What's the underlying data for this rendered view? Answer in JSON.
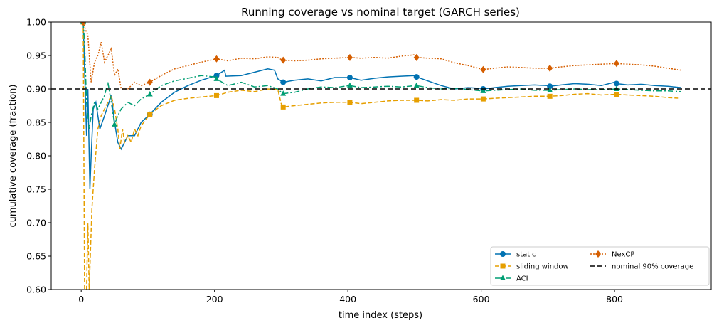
{
  "chart_data": {
    "type": "line",
    "title": "Running coverage vs nominal target (GARCH series)",
    "xlabel": "time index (steps)",
    "ylabel": "cumulative coverage (fraction)",
    "xlim": [
      -45,
      945
    ],
    "ylim": [
      0.6,
      1.0
    ],
    "xticks": [
      0,
      200,
      400,
      600,
      800
    ],
    "yticks": [
      0.6,
      0.65,
      0.7,
      0.75,
      0.8,
      0.85,
      0.9,
      0.95,
      1.0
    ],
    "xtick_labels": [
      "0",
      "200",
      "400",
      "600",
      "800"
    ],
    "ytick_labels": [
      "0.60",
      "0.65",
      "0.70",
      "0.75",
      "0.80",
      "0.85",
      "0.90",
      "0.95",
      "1.00"
    ],
    "grid": false,
    "legend_position": "lower-right",
    "reference_line": {
      "y": 0.9,
      "name": "nominal 90% coverage",
      "color": "#000000"
    },
    "series": [
      {
        "name": "static",
        "color": "#0072b2",
        "dash": "solid",
        "marker": "circle",
        "marker_x": [
          3,
          103,
          203,
          303,
          403,
          503,
          603,
          703,
          803
        ],
        "marker_y": [
          1.0,
          0.862,
          0.92,
          0.91,
          0.917,
          0.918,
          0.9,
          0.904,
          0.908
        ],
        "x": [
          3,
          8,
          10,
          13,
          15,
          18,
          22,
          28,
          35,
          45,
          50,
          55,
          60,
          70,
          80,
          90,
          103,
          120,
          140,
          160,
          180,
          203,
          215,
          217,
          240,
          260,
          280,
          290,
          295,
          300,
          303,
          320,
          340,
          360,
          380,
          403,
          420,
          440,
          460,
          480,
          500,
          503,
          520,
          540,
          560,
          580,
          600,
          603,
          620,
          640,
          660,
          680,
          700,
          703,
          720,
          740,
          760,
          780,
          800,
          803,
          820,
          840,
          860,
          880,
          900
        ],
        "y": [
          1.0,
          0.83,
          0.9,
          0.75,
          0.8,
          0.87,
          0.88,
          0.84,
          0.86,
          0.89,
          0.85,
          0.82,
          0.81,
          0.83,
          0.83,
          0.85,
          0.862,
          0.88,
          0.895,
          0.905,
          0.913,
          0.92,
          0.928,
          0.919,
          0.92,
          0.925,
          0.93,
          0.928,
          0.915,
          0.912,
          0.91,
          0.913,
          0.915,
          0.912,
          0.917,
          0.917,
          0.913,
          0.916,
          0.918,
          0.919,
          0.92,
          0.918,
          0.912,
          0.905,
          0.9,
          0.902,
          0.901,
          0.9,
          0.902,
          0.904,
          0.905,
          0.906,
          0.905,
          0.904,
          0.906,
          0.908,
          0.907,
          0.905,
          0.91,
          0.908,
          0.906,
          0.907,
          0.905,
          0.904,
          0.902
        ]
      },
      {
        "name": "sliding window",
        "color": "#e69f00",
        "dash": "6,3",
        "marker": "square",
        "marker_x": [
          3,
          103,
          203,
          303,
          403,
          503,
          603,
          703,
          803
        ],
        "marker_y": [
          1.0,
          0.862,
          0.89,
          0.873,
          0.88,
          0.883,
          0.885,
          0.889,
          0.892
        ],
        "x": [
          3,
          5,
          8,
          10,
          12,
          14,
          16,
          20,
          25,
          30,
          35,
          40,
          45,
          50,
          55,
          58,
          62,
          65,
          70,
          75,
          80,
          85,
          90,
          103,
          120,
          140,
          160,
          180,
          203,
          220,
          240,
          260,
          280,
          295,
          300,
          303,
          320,
          340,
          360,
          380,
          403,
          420,
          440,
          460,
          480,
          503,
          520,
          540,
          560,
          580,
          603,
          620,
          640,
          660,
          680,
          703,
          720,
          740,
          760,
          780,
          803,
          820,
          840,
          860,
          880,
          900
        ],
        "y": [
          1.0,
          0.6,
          0.6,
          0.7,
          0.6,
          0.66,
          0.72,
          0.78,
          0.84,
          0.86,
          0.87,
          0.88,
          0.89,
          0.87,
          0.84,
          0.81,
          0.84,
          0.82,
          0.83,
          0.82,
          0.84,
          0.83,
          0.845,
          0.862,
          0.875,
          0.883,
          0.886,
          0.888,
          0.89,
          0.895,
          0.898,
          0.896,
          0.9,
          0.899,
          0.878,
          0.873,
          0.875,
          0.877,
          0.879,
          0.88,
          0.88,
          0.878,
          0.88,
          0.882,
          0.883,
          0.883,
          0.882,
          0.884,
          0.883,
          0.885,
          0.885,
          0.886,
          0.887,
          0.888,
          0.889,
          0.889,
          0.89,
          0.892,
          0.893,
          0.891,
          0.892,
          0.891,
          0.89,
          0.889,
          0.887,
          0.886
        ]
      },
      {
        "name": "ACI",
        "color": "#009e73",
        "dash": "8,3,2,3",
        "marker": "triangle",
        "marker_x": [
          3,
          50,
          103,
          203,
          303,
          403,
          503,
          603,
          703,
          803
        ],
        "marker_y": [
          1.0,
          0.847,
          0.892,
          0.915,
          0.893,
          0.905,
          0.905,
          0.897,
          0.898,
          0.9
        ],
        "x": [
          3,
          5,
          8,
          12,
          15,
          20,
          25,
          30,
          35,
          40,
          45,
          50,
          55,
          60,
          70,
          80,
          90,
          103,
          120,
          140,
          160,
          180,
          200,
          203,
          220,
          240,
          260,
          280,
          295,
          300,
          303,
          320,
          340,
          360,
          380,
          403,
          420,
          440,
          460,
          480,
          503,
          520,
          540,
          560,
          580,
          603,
          620,
          640,
          660,
          680,
          703,
          720,
          740,
          760,
          780,
          803,
          820,
          840,
          860,
          880,
          900
        ],
        "y": [
          1.0,
          0.97,
          0.88,
          0.84,
          0.86,
          0.88,
          0.87,
          0.88,
          0.89,
          0.91,
          0.88,
          0.847,
          0.86,
          0.87,
          0.88,
          0.875,
          0.885,
          0.892,
          0.905,
          0.912,
          0.916,
          0.92,
          0.918,
          0.915,
          0.905,
          0.91,
          0.903,
          0.905,
          0.9,
          0.895,
          0.893,
          0.895,
          0.9,
          0.903,
          0.902,
          0.905,
          0.902,
          0.903,
          0.904,
          0.903,
          0.905,
          0.902,
          0.9,
          0.901,
          0.899,
          0.897,
          0.898,
          0.899,
          0.9,
          0.898,
          0.898,
          0.899,
          0.9,
          0.899,
          0.899,
          0.9,
          0.899,
          0.898,
          0.897,
          0.897,
          0.896
        ]
      },
      {
        "name": "NexCP",
        "color": "#d55e00",
        "dash": "2,2",
        "marker": "diamond",
        "marker_x": [
          3,
          103,
          203,
          303,
          403,
          503,
          603,
          703,
          803
        ],
        "marker_y": [
          1.0,
          0.91,
          0.945,
          0.943,
          0.947,
          0.947,
          0.929,
          0.931,
          0.938
        ],
        "x": [
          3,
          6,
          10,
          15,
          20,
          25,
          30,
          35,
          40,
          45,
          50,
          55,
          60,
          70,
          80,
          90,
          103,
          120,
          140,
          160,
          180,
          203,
          220,
          240,
          260,
          280,
          295,
          300,
          303,
          320,
          340,
          360,
          380,
          403,
          420,
          440,
          460,
          480,
          500,
          503,
          520,
          540,
          560,
          580,
          603,
          620,
          640,
          660,
          680,
          703,
          720,
          740,
          760,
          780,
          803,
          820,
          840,
          860,
          880,
          900
        ],
        "y": [
          1.0,
          0.99,
          0.98,
          0.91,
          0.94,
          0.95,
          0.97,
          0.94,
          0.95,
          0.96,
          0.92,
          0.93,
          0.9,
          0.9,
          0.91,
          0.905,
          0.91,
          0.92,
          0.93,
          0.935,
          0.94,
          0.945,
          0.942,
          0.946,
          0.945,
          0.948,
          0.947,
          0.944,
          0.943,
          0.942,
          0.943,
          0.945,
          0.946,
          0.947,
          0.946,
          0.947,
          0.946,
          0.949,
          0.951,
          0.947,
          0.946,
          0.945,
          0.939,
          0.935,
          0.929,
          0.931,
          0.933,
          0.932,
          0.931,
          0.931,
          0.933,
          0.935,
          0.936,
          0.937,
          0.938,
          0.937,
          0.936,
          0.934,
          0.931,
          0.928
        ]
      }
    ]
  }
}
